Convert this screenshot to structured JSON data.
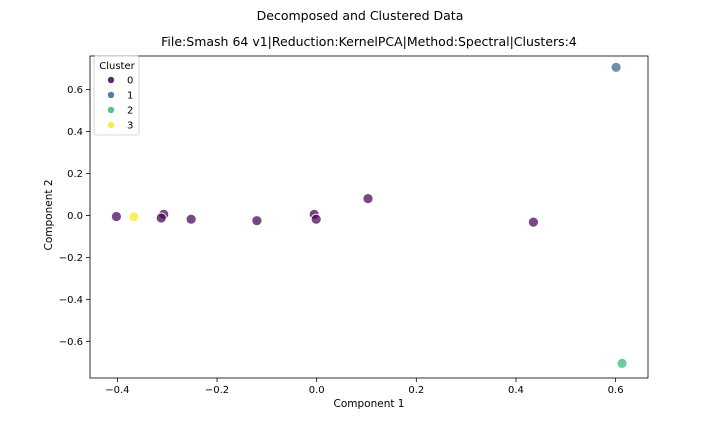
{
  "figure": {
    "suptitle": "Decomposed and Clustered Data"
  },
  "chart_data": {
    "type": "scatter",
    "title": "File:Smash 64 v1|Reduction:KernelPCA|Method:Spectral|Clusters:4",
    "xlabel": "Component 1",
    "ylabel": "Component 2",
    "xlim": [
      -0.455,
      0.665
    ],
    "ylim": [
      -0.775,
      0.76
    ],
    "xticks": [
      -0.4,
      -0.2,
      0.0,
      0.2,
      0.4,
      0.6
    ],
    "xtick_labels": [
      "−0.4",
      "−0.2",
      "0.0",
      "0.2",
      "0.4",
      "0.6"
    ],
    "yticks": [
      -0.6,
      -0.4,
      -0.2,
      0.0,
      0.2,
      0.4,
      0.6
    ],
    "ytick_labels": [
      "−0.6",
      "−0.4",
      "−0.2",
      "0.0",
      "0.2",
      "0.4",
      "0.6"
    ],
    "grid": false,
    "legend": {
      "title": "Cluster",
      "placement": "upper-left",
      "entries": [
        {
          "label": "0",
          "color": "#440154"
        },
        {
          "label": "1",
          "color": "#31688e"
        },
        {
          "label": "2",
          "color": "#35b779"
        },
        {
          "label": "3",
          "color": "#fde725"
        }
      ]
    },
    "points": [
      {
        "x": -0.402,
        "y": -0.005,
        "cluster": 0
      },
      {
        "x": -0.307,
        "y": 0.005,
        "cluster": 0
      },
      {
        "x": -0.312,
        "y": -0.012,
        "cluster": 0
      },
      {
        "x": -0.252,
        "y": -0.018,
        "cluster": 0
      },
      {
        "x": -0.12,
        "y": -0.025,
        "cluster": 0
      },
      {
        "x": -0.005,
        "y": 0.005,
        "cluster": 0
      },
      {
        "x": -0.001,
        "y": -0.018,
        "cluster": 0
      },
      {
        "x": 0.103,
        "y": 0.08,
        "cluster": 0
      },
      {
        "x": 0.435,
        "y": -0.032,
        "cluster": 0
      },
      {
        "x": 0.601,
        "y": 0.706,
        "cluster": 1
      },
      {
        "x": 0.613,
        "y": -0.705,
        "cluster": 2
      },
      {
        "x": -0.367,
        "y": -0.007,
        "cluster": 3
      }
    ]
  }
}
